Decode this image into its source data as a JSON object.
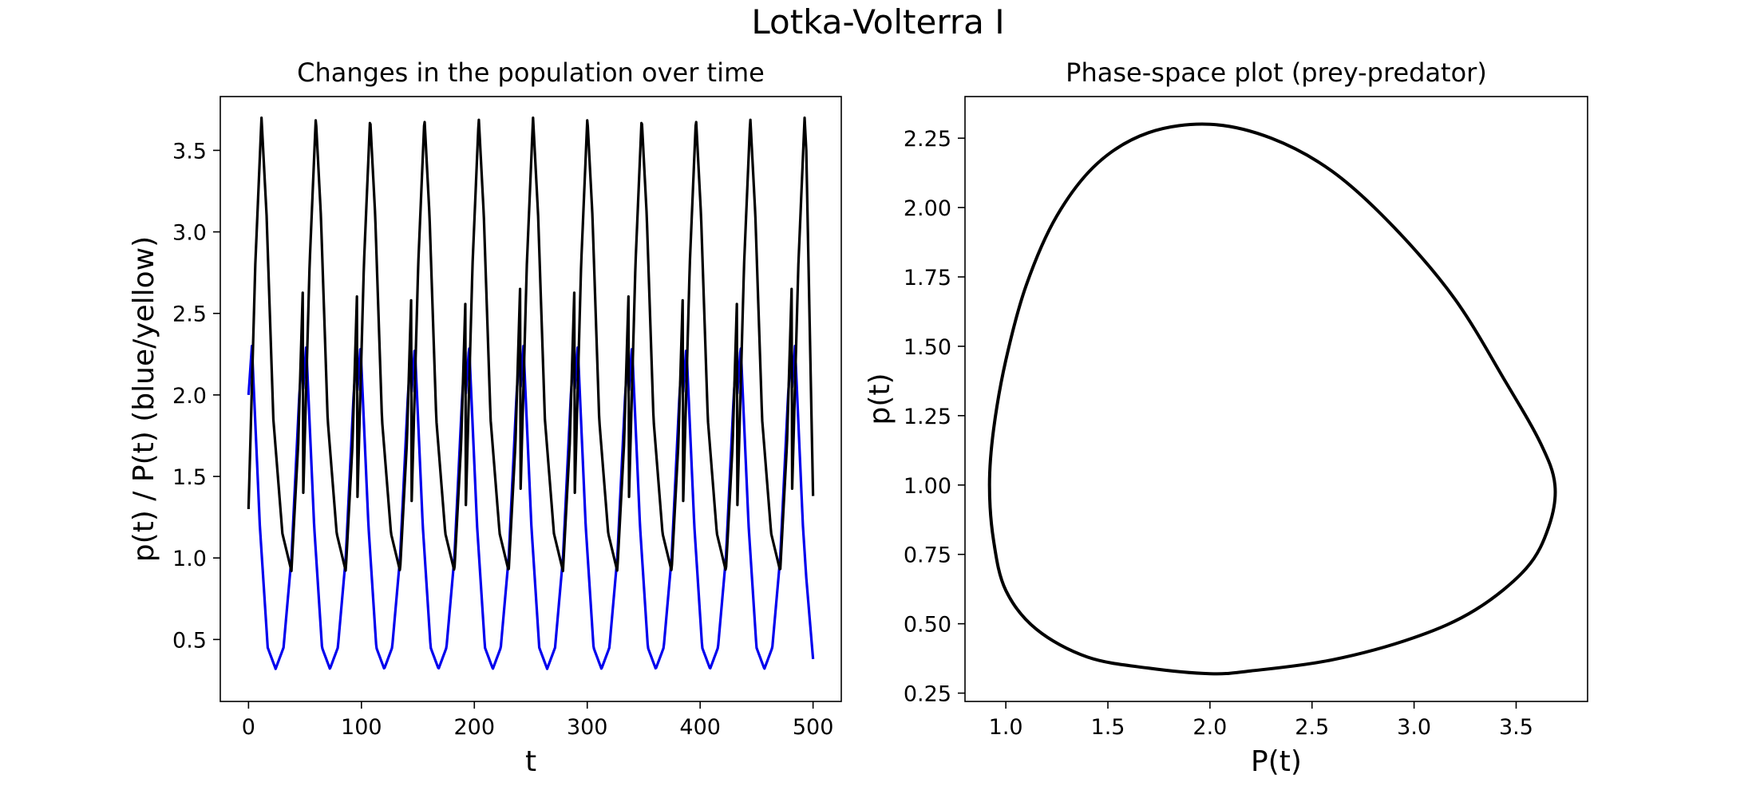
{
  "figure": {
    "title": "Lotka-Volterra I"
  },
  "chart_data": [
    {
      "type": "line",
      "title": "Changes in the population over time",
      "xlabel": "t",
      "ylabel": "p(t) / P(t) (blue/yellow)",
      "xlim": [
        -25,
        525
      ],
      "ylim": [
        0.12,
        3.83
      ],
      "xticks": [
        0,
        100,
        200,
        300,
        400,
        500
      ],
      "xtick_labels": [
        "0",
        "100",
        "200",
        "300",
        "400",
        "500"
      ],
      "yticks": [
        0.5,
        1.0,
        1.5,
        2.0,
        2.5,
        3.0,
        3.5
      ],
      "ytick_labels": [
        "0.5",
        "1.0",
        "1.5",
        "2.0",
        "2.5",
        "3.0",
        "3.5"
      ],
      "grid": false,
      "series": [
        {
          "color": "#0000ee",
          "t": [
            0,
            3,
            10,
            17,
            24,
            31,
            38,
            45,
            48.1
          ],
          "values": [
            2.0,
            2.3,
            1.2,
            0.45,
            0.32,
            0.45,
            1.0,
            2.0,
            2.3
          ],
          "period": 48.1,
          "t_end": 500,
          "final_value": 0.38
        },
        {
          "color": "#000000",
          "t": [
            0,
            6,
            11.5,
            16,
            22,
            30,
            38,
            44,
            48.1
          ],
          "values": [
            1.3,
            2.8,
            3.7,
            3.1,
            1.85,
            1.15,
            0.92,
            1.7,
            2.65
          ],
          "period": 48.1,
          "t_end": 500,
          "final_value": 1.38
        }
      ]
    },
    {
      "type": "line",
      "title": "Phase-space plot (prey-predator)",
      "xlabel": "P(t)",
      "ylabel": "p(t)",
      "xlim": [
        0.8,
        3.85
      ],
      "ylim": [
        0.22,
        2.4
      ],
      "xticks": [
        1.0,
        1.5,
        2.0,
        2.5,
        3.0,
        3.5
      ],
      "xtick_labels": [
        "1.0",
        "1.5",
        "2.0",
        "2.5",
        "3.0",
        "3.5"
      ],
      "yticks": [
        0.25,
        0.5,
        0.75,
        1.0,
        1.25,
        1.5,
        1.75,
        2.0,
        2.25
      ],
      "ytick_labels": [
        "0.25",
        "0.50",
        "0.75",
        "1.00",
        "1.25",
        "1.50",
        "1.75",
        "2.00",
        "2.25"
      ],
      "grid": false,
      "series": [
        {
          "color": "#000000",
          "points": [
            [
              2.0,
              2.3
            ],
            [
              2.3,
              2.25
            ],
            [
              2.6,
              2.13
            ],
            [
              2.9,
              1.93
            ],
            [
              3.2,
              1.67
            ],
            [
              3.45,
              1.37
            ],
            [
              3.62,
              1.15
            ],
            [
              3.69,
              1.0
            ],
            [
              3.66,
              0.85
            ],
            [
              3.55,
              0.7
            ],
            [
              3.3,
              0.55
            ],
            [
              3.0,
              0.45
            ],
            [
              2.6,
              0.37
            ],
            [
              2.2,
              0.33
            ],
            [
              2.0,
              0.32
            ],
            [
              1.7,
              0.34
            ],
            [
              1.4,
              0.38
            ],
            [
              1.15,
              0.48
            ],
            [
              1.0,
              0.62
            ],
            [
              0.94,
              0.8
            ],
            [
              0.92,
              1.0
            ],
            [
              0.94,
              1.2
            ],
            [
              1.0,
              1.45
            ],
            [
              1.1,
              1.72
            ],
            [
              1.25,
              1.97
            ],
            [
              1.45,
              2.16
            ],
            [
              1.7,
              2.27
            ],
            [
              2.0,
              2.3
            ]
          ]
        }
      ]
    }
  ]
}
